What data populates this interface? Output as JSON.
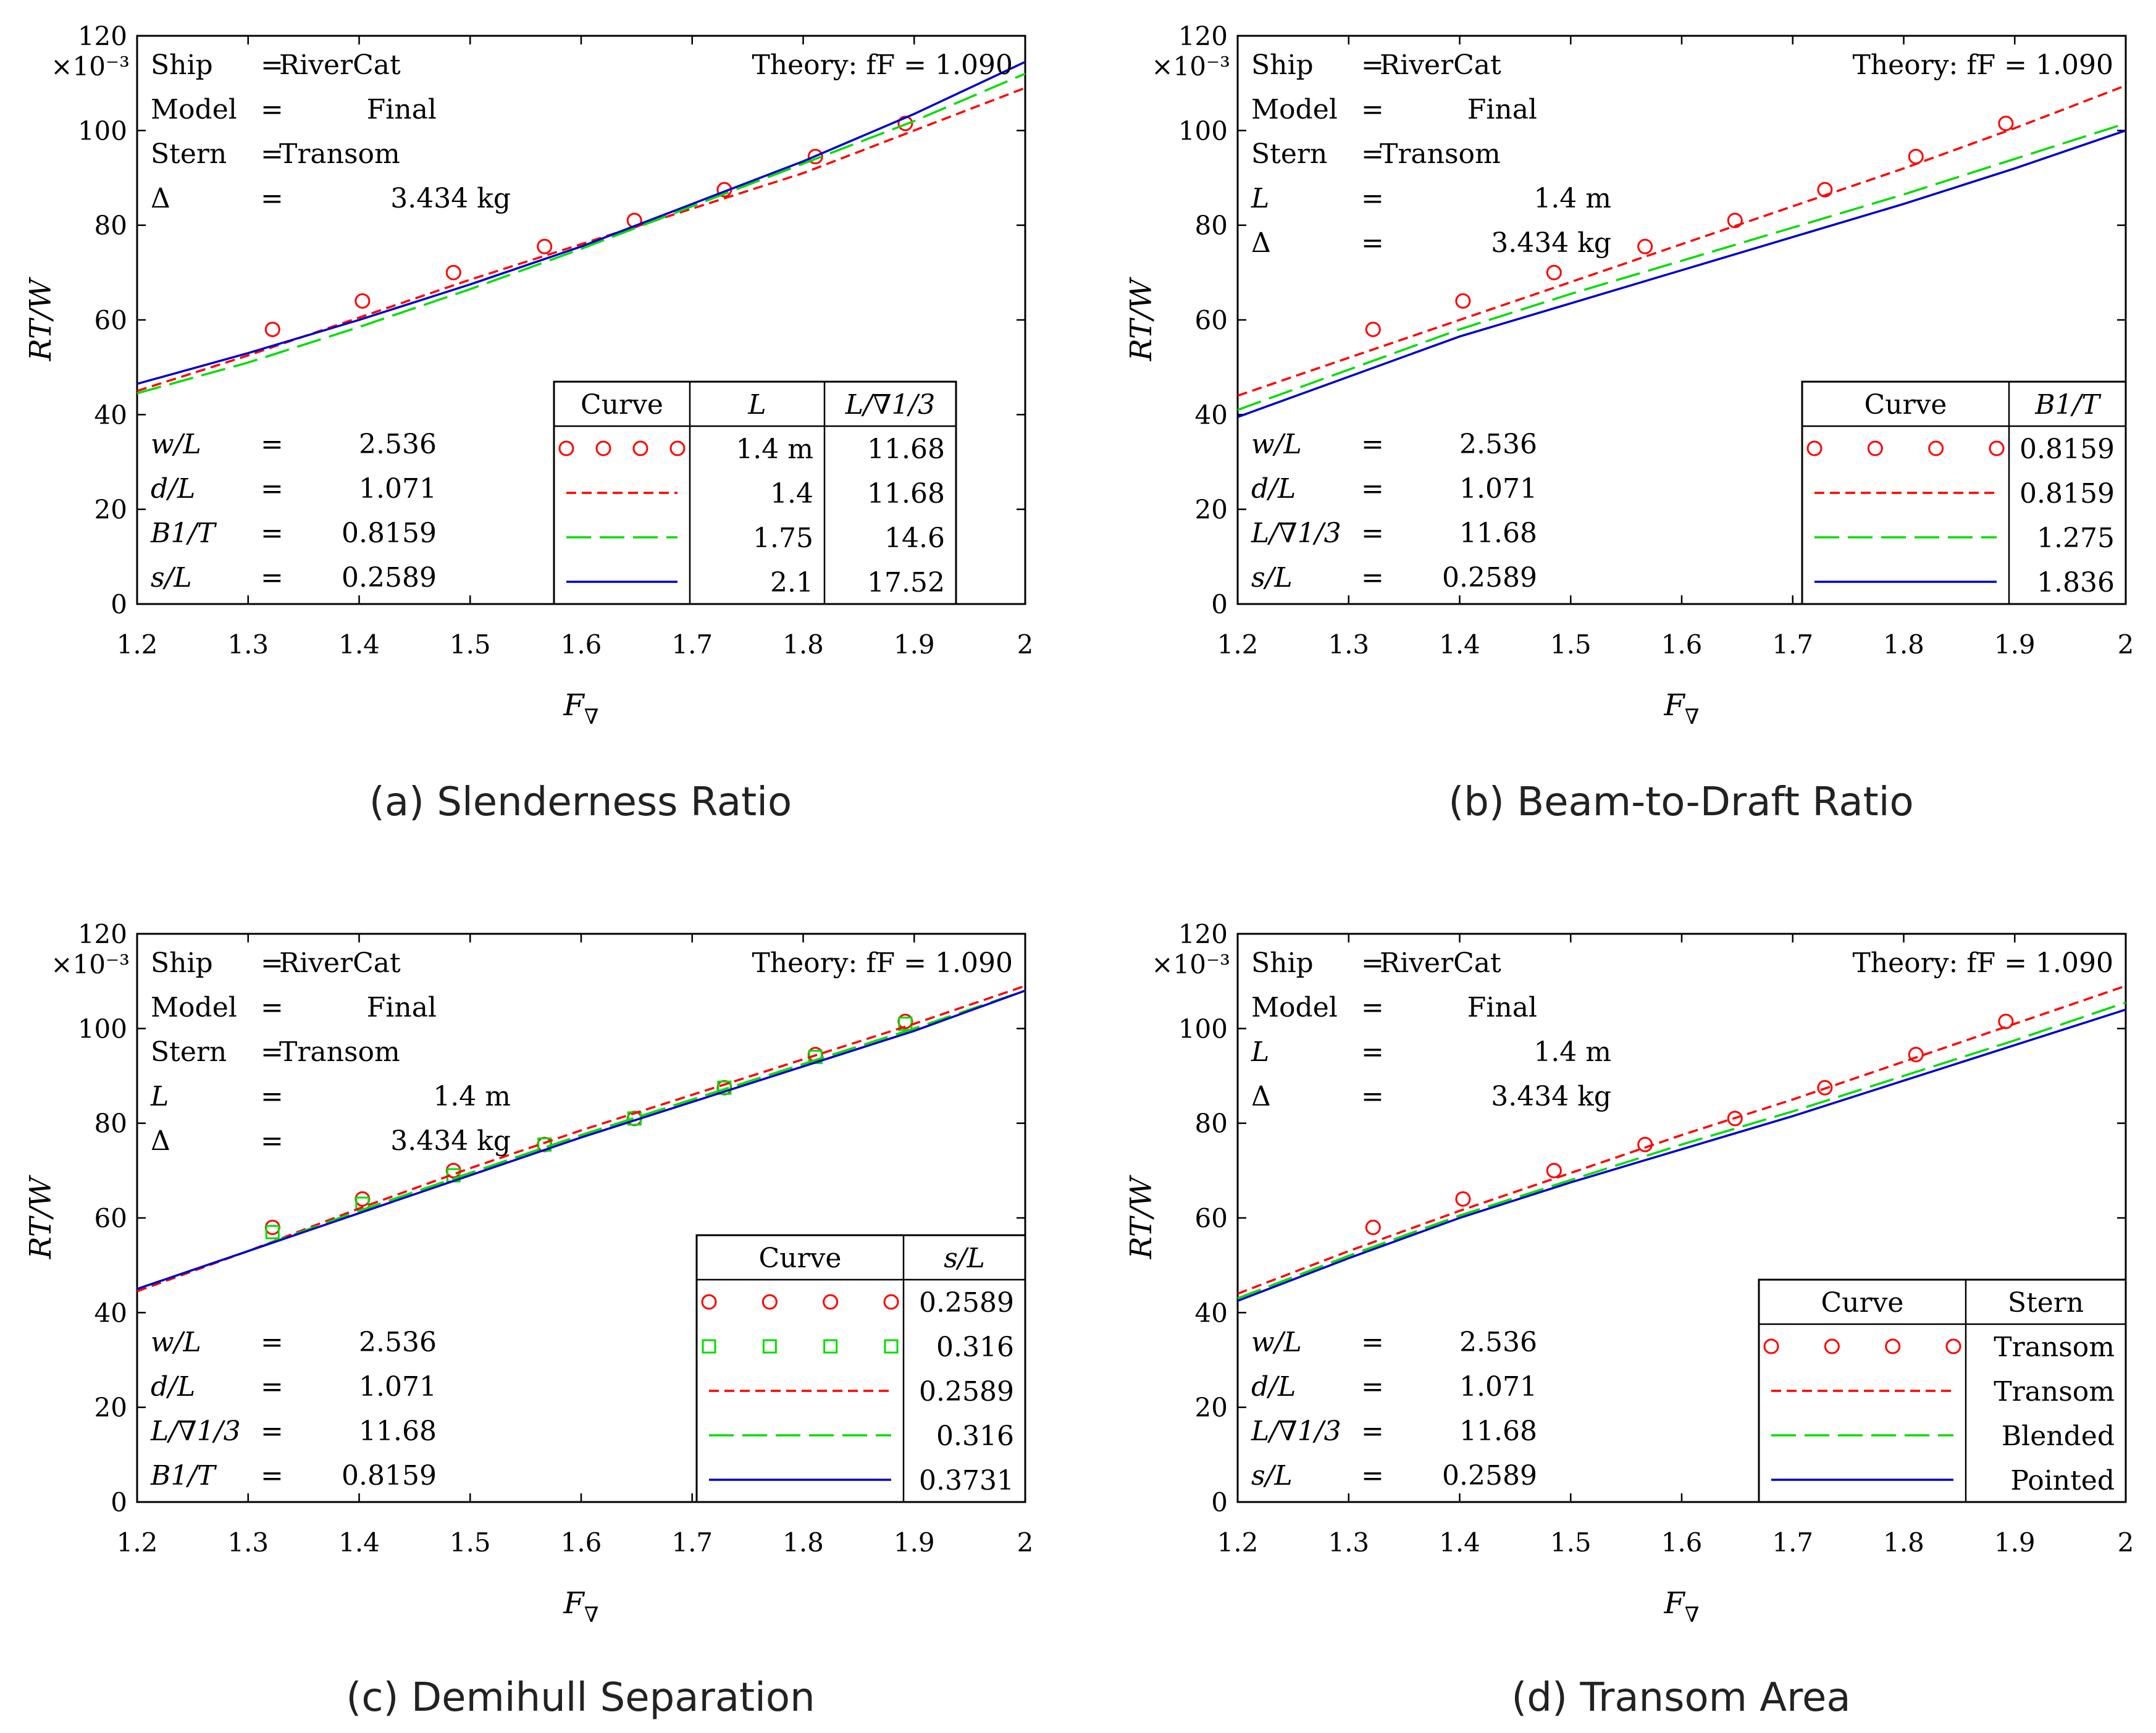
{
  "chart_data": [
    {
      "id": "a",
      "type": "line",
      "caption": "(a) Slenderness Ratio",
      "xlabel": "F∇",
      "ylabel": "RT/W",
      "y_multiplier": "×10⁻³",
      "xlim": [
        1.2,
        2.0
      ],
      "ylim": [
        0,
        120
      ],
      "xticks": [
        "1.2",
        "1.3",
        "1.4",
        "1.5",
        "1.6",
        "1.7",
        "1.8",
        "1.9",
        "2"
      ],
      "yticks": [
        "0",
        "20",
        "40",
        "60",
        "80",
        "100",
        "120"
      ],
      "theory_label": "Theory: fF = 1.090",
      "info_top": [
        [
          "Ship",
          "=",
          "RiverCat"
        ],
        [
          "Model",
          "=",
          "Final"
        ],
        [
          "Stern",
          "=",
          "Transom"
        ],
        [
          "Δ",
          "=",
          "3.434 kg"
        ]
      ],
      "info_bottom": [
        [
          "w/L",
          "=",
          "2.536"
        ],
        [
          "d/L",
          "=",
          "1.071"
        ],
        [
          "B1/T",
          "=",
          "0.8159"
        ],
        [
          "s/L",
          "=",
          "0.2589"
        ]
      ],
      "legend": {
        "headers": [
          "Curve",
          "L",
          "L/∇1/3"
        ],
        "rows": [
          [
            "1.4 m",
            "11.68"
          ],
          [
            "1.4",
            "11.68"
          ],
          [
            "1.75",
            "14.6"
          ],
          [
            "2.1",
            "17.52"
          ]
        ]
      },
      "series": [
        {
          "name": "experiment",
          "style": "circle",
          "color": "#ff0000",
          "x": [
            1.322,
            1.403,
            1.485,
            1.567,
            1.648,
            1.729,
            1.811,
            1.892
          ],
          "y": [
            58,
            64,
            70,
            75.5,
            81,
            87.5,
            94.5,
            101.5
          ]
        },
        {
          "name": "theory L=1.4",
          "style": "dash",
          "color": "#ff0000",
          "x": [
            1.2,
            1.3,
            1.4,
            1.5,
            1.6,
            1.7,
            1.8,
            1.9,
            2.0
          ],
          "y": [
            45,
            52.5,
            60.5,
            68.5,
            76,
            83.5,
            91,
            100,
            109
          ]
        },
        {
          "name": "theory L=1.75",
          "style": "longdash",
          "color": "#00dd00",
          "x": [
            1.2,
            1.3,
            1.4,
            1.5,
            1.6,
            1.7,
            1.8,
            1.9,
            2.0
          ],
          "y": [
            44.5,
            51,
            58.5,
            66.5,
            75,
            84,
            93,
            102,
            112
          ]
        },
        {
          "name": "theory L=2.1",
          "style": "solid",
          "color": "#0000cc",
          "x": [
            1.2,
            1.3,
            1.4,
            1.5,
            1.6,
            1.7,
            1.8,
            1.9,
            2.0
          ],
          "y": [
            46.5,
            53,
            60,
            67.5,
            75.5,
            84.5,
            93.5,
            103.5,
            114.5
          ]
        }
      ]
    },
    {
      "id": "b",
      "type": "line",
      "caption": "(b) Beam-to-Draft Ratio",
      "xlabel": "F∇",
      "ylabel": "RT/W",
      "y_multiplier": "×10⁻³",
      "xlim": [
        1.2,
        2.0
      ],
      "ylim": [
        0,
        120
      ],
      "xticks": [
        "1.2",
        "1.3",
        "1.4",
        "1.5",
        "1.6",
        "1.7",
        "1.8",
        "1.9",
        "2"
      ],
      "yticks": [
        "0",
        "20",
        "40",
        "60",
        "80",
        "100",
        "120"
      ],
      "theory_label": "Theory: fF = 1.090",
      "info_top": [
        [
          "Ship",
          "=",
          "RiverCat"
        ],
        [
          "Model",
          "=",
          "Final"
        ],
        [
          "Stern",
          "=",
          "Transom"
        ],
        [
          "L",
          "=",
          "1.4 m"
        ],
        [
          "Δ",
          "=",
          "3.434 kg"
        ]
      ],
      "info_bottom": [
        [
          "w/L",
          "=",
          "2.536"
        ],
        [
          "d/L",
          "=",
          "1.071"
        ],
        [
          "L/∇1/3",
          "=",
          "11.68"
        ],
        [
          "s/L",
          "=",
          "0.2589"
        ]
      ],
      "legend": {
        "headers": [
          "Curve",
          "B1/T"
        ],
        "rows": [
          [
            "0.8159"
          ],
          [
            "0.8159"
          ],
          [
            "1.275"
          ],
          [
            "1.836"
          ]
        ]
      },
      "series": [
        {
          "name": "experiment",
          "style": "circle",
          "color": "#ff0000",
          "x": [
            1.322,
            1.403,
            1.485,
            1.567,
            1.648,
            1.729,
            1.811,
            1.892
          ],
          "y": [
            58,
            64,
            70,
            75.5,
            81,
            87.5,
            94.5,
            101.5
          ]
        },
        {
          "name": "theory B1/T=0.8159",
          "style": "dash",
          "color": "#ff0000",
          "x": [
            1.2,
            1.3,
            1.4,
            1.5,
            1.6,
            1.7,
            1.8,
            1.9,
            2.0
          ],
          "y": [
            44,
            52,
            60,
            68,
            76,
            84,
            92,
            100.5,
            109.5
          ]
        },
        {
          "name": "theory B1/T=1.275",
          "style": "longdash",
          "color": "#00dd00",
          "x": [
            1.2,
            1.3,
            1.4,
            1.5,
            1.6,
            1.7,
            1.8,
            1.9,
            2.0
          ],
          "y": [
            41,
            49.5,
            58,
            65.5,
            72.5,
            79.5,
            86.5,
            94,
            101.5
          ]
        },
        {
          "name": "theory B1/T=1.836",
          "style": "solid",
          "color": "#0000cc",
          "x": [
            1.2,
            1.3,
            1.4,
            1.5,
            1.6,
            1.7,
            1.8,
            1.9,
            2.0
          ],
          "y": [
            39.5,
            48,
            56.5,
            63.5,
            70.5,
            77.5,
            84.5,
            92,
            100
          ]
        }
      ]
    },
    {
      "id": "c",
      "type": "line",
      "caption": "(c) Demihull Separation",
      "xlabel": "F∇",
      "ylabel": "RT/W",
      "y_multiplier": "×10⁻³",
      "xlim": [
        1.2,
        2.0
      ],
      "ylim": [
        0,
        120
      ],
      "xticks": [
        "1.2",
        "1.3",
        "1.4",
        "1.5",
        "1.6",
        "1.7",
        "1.8",
        "1.9",
        "2"
      ],
      "yticks": [
        "0",
        "20",
        "40",
        "60",
        "80",
        "100",
        "120"
      ],
      "theory_label": "Theory: fF = 1.090",
      "info_top": [
        [
          "Ship",
          "=",
          "RiverCat"
        ],
        [
          "Model",
          "=",
          "Final"
        ],
        [
          "Stern",
          "=",
          "Transom"
        ],
        [
          "L",
          "=",
          "1.4 m"
        ],
        [
          "Δ",
          "=",
          "3.434 kg"
        ]
      ],
      "info_bottom": [
        [
          "w/L",
          "=",
          "2.536"
        ],
        [
          "d/L",
          "=",
          "1.071"
        ],
        [
          "L/∇1/3",
          "=",
          "11.68"
        ],
        [
          "B1/T",
          "=",
          "0.8159"
        ]
      ],
      "legend": {
        "headers": [
          "Curve",
          "s/L"
        ],
        "rows": [
          [
            "0.2589"
          ],
          [
            "0.316"
          ],
          [
            "0.2589"
          ],
          [
            "0.316"
          ],
          [
            "0.3731"
          ]
        ]
      },
      "series": [
        {
          "name": "experiment s/L=0.2589",
          "style": "circle",
          "color": "#ff0000",
          "x": [
            1.322,
            1.403,
            1.485,
            1.567,
            1.648,
            1.729,
            1.811,
            1.892
          ],
          "y": [
            58,
            64,
            70,
            75.5,
            81,
            87.5,
            94.5,
            101.5
          ]
        },
        {
          "name": "experiment s/L=0.316",
          "style": "square",
          "color": "#00dd00",
          "x": [
            1.322,
            1.403,
            1.485,
            1.567,
            1.648,
            1.729,
            1.811,
            1.892
          ],
          "y": [
            57,
            63,
            69,
            75.5,
            81,
            87.5,
            94,
            101
          ]
        },
        {
          "name": "theory s/L=0.2589",
          "style": "dash",
          "color": "#ff0000",
          "x": [
            1.2,
            1.3,
            1.4,
            1.5,
            1.6,
            1.7,
            1.8,
            1.9,
            2.0
          ],
          "y": [
            44.5,
            53,
            62,
            70.5,
            78.5,
            86,
            93.5,
            101,
            109
          ]
        },
        {
          "name": "theory s/L=0.316",
          "style": "longdash",
          "color": "#00dd00",
          "x": [
            1.2,
            1.3,
            1.4,
            1.5,
            1.6,
            1.7,
            1.8,
            1.9,
            2.0
          ],
          "y": [
            45,
            53,
            61.5,
            69.5,
            77.5,
            85,
            92.5,
            100,
            108
          ]
        },
        {
          "name": "theory s/L=0.3731",
          "style": "solid",
          "color": "#0000cc",
          "x": [
            1.2,
            1.3,
            1.4,
            1.5,
            1.6,
            1.7,
            1.8,
            1.9,
            2.0
          ],
          "y": [
            45,
            53,
            61,
            69,
            77,
            84.5,
            92,
            99.5,
            108
          ]
        }
      ]
    },
    {
      "id": "d",
      "type": "line",
      "caption": "(d) Transom Area",
      "xlabel": "F∇",
      "ylabel": "RT/W",
      "y_multiplier": "×10⁻³",
      "xlim": [
        1.2,
        2.0
      ],
      "ylim": [
        0,
        120
      ],
      "xticks": [
        "1.2",
        "1.3",
        "1.4",
        "1.5",
        "1.6",
        "1.7",
        "1.8",
        "1.9",
        "2"
      ],
      "yticks": [
        "0",
        "20",
        "40",
        "60",
        "80",
        "100",
        "120"
      ],
      "theory_label": "Theory: fF = 1.090",
      "info_top": [
        [
          "Ship",
          "=",
          "RiverCat"
        ],
        [
          "Model",
          "=",
          "Final"
        ],
        [
          "L",
          "=",
          "1.4 m"
        ],
        [
          "Δ",
          "=",
          "3.434 kg"
        ]
      ],
      "info_bottom": [
        [
          "w/L",
          "=",
          "2.536"
        ],
        [
          "d/L",
          "=",
          "1.071"
        ],
        [
          "L/∇1/3",
          "=",
          "11.68"
        ],
        [
          "s/L",
          "=",
          "0.2589"
        ]
      ],
      "legend": {
        "headers": [
          "Curve",
          "Stern"
        ],
        "rows": [
          [
            "Transom"
          ],
          [
            "Transom"
          ],
          [
            "Blended"
          ],
          [
            "Pointed"
          ]
        ]
      },
      "series": [
        {
          "name": "experiment transom",
          "style": "circle",
          "color": "#ff0000",
          "x": [
            1.322,
            1.403,
            1.485,
            1.567,
            1.648,
            1.729,
            1.811,
            1.892
          ],
          "y": [
            58,
            64,
            70,
            75.5,
            81,
            87.5,
            94.5,
            101.5
          ]
        },
        {
          "name": "theory transom",
          "style": "dash",
          "color": "#ff0000",
          "x": [
            1.2,
            1.3,
            1.4,
            1.5,
            1.6,
            1.7,
            1.8,
            1.9,
            2.0
          ],
          "y": [
            44,
            53,
            61.5,
            69.5,
            77.5,
            85,
            93,
            101,
            109
          ]
        },
        {
          "name": "theory blended",
          "style": "longdash",
          "color": "#00dd00",
          "x": [
            1.2,
            1.3,
            1.4,
            1.5,
            1.6,
            1.7,
            1.8,
            1.9,
            2.0
          ],
          "y": [
            43,
            52,
            60.5,
            68,
            75.5,
            82.5,
            90,
            97.5,
            105.5
          ]
        },
        {
          "name": "theory pointed",
          "style": "solid",
          "color": "#0000cc",
          "x": [
            1.2,
            1.3,
            1.4,
            1.5,
            1.6,
            1.7,
            1.8,
            1.9,
            2.0
          ],
          "y": [
            42.5,
            51.5,
            60,
            67.5,
            74.5,
            81.5,
            89,
            96.5,
            104
          ]
        }
      ]
    }
  ]
}
